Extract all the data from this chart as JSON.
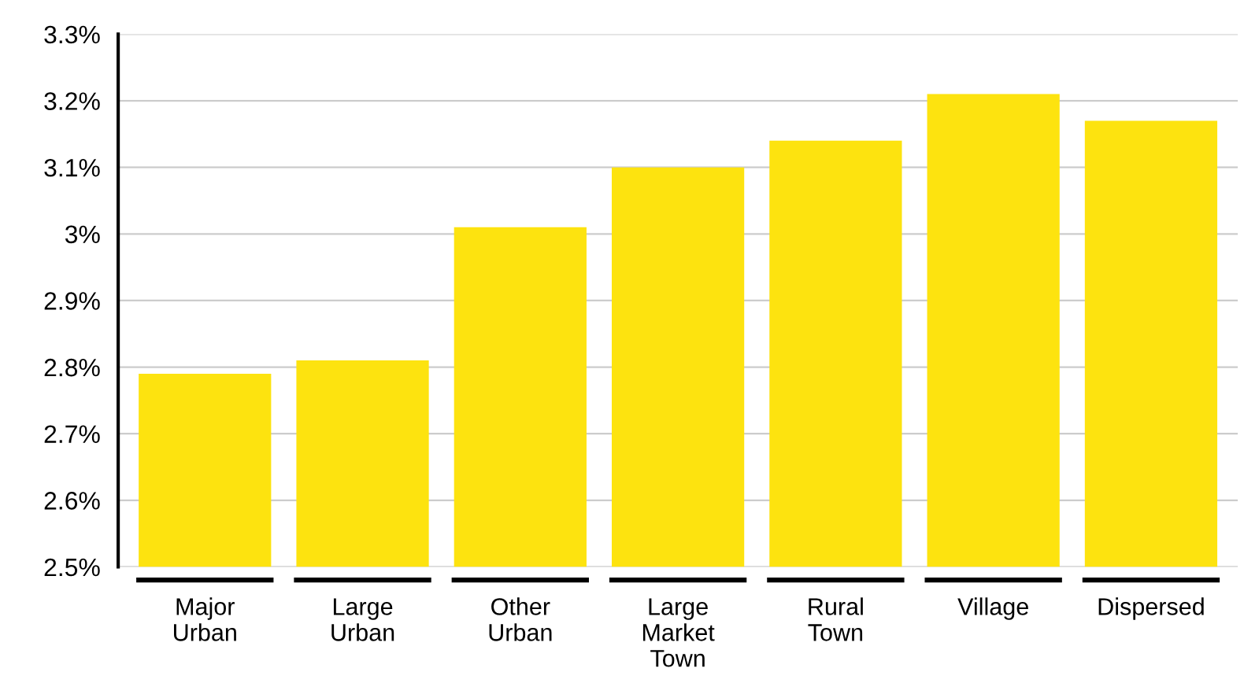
{
  "chart_data": {
    "type": "bar",
    "categories": [
      "Major\nUrban",
      "Large\nUrban",
      "Other\nUrban",
      "Large\nMarket\nTown",
      "Rural\nTown",
      "Village",
      "Dispersed"
    ],
    "values": [
      2.79,
      2.81,
      3.01,
      3.1,
      3.14,
      3.21,
      3.17
    ],
    "color": "#fde30f",
    "ylim": [
      2.5,
      3.3
    ],
    "yticks": [
      {
        "value": 2.5,
        "label": "2.5%"
      },
      {
        "value": 2.6,
        "label": "2.6%"
      },
      {
        "value": 2.7,
        "label": "2.7%"
      },
      {
        "value": 2.8,
        "label": "2.8%"
      },
      {
        "value": 2.9,
        "label": "2.9%"
      },
      {
        "value": 3.0,
        "label": "3%"
      },
      {
        "value": 3.1,
        "label": "3.1%"
      },
      {
        "value": 3.2,
        "label": "3.2%"
      },
      {
        "value": 3.3,
        "label": "3.3%"
      }
    ],
    "grid": "y"
  }
}
